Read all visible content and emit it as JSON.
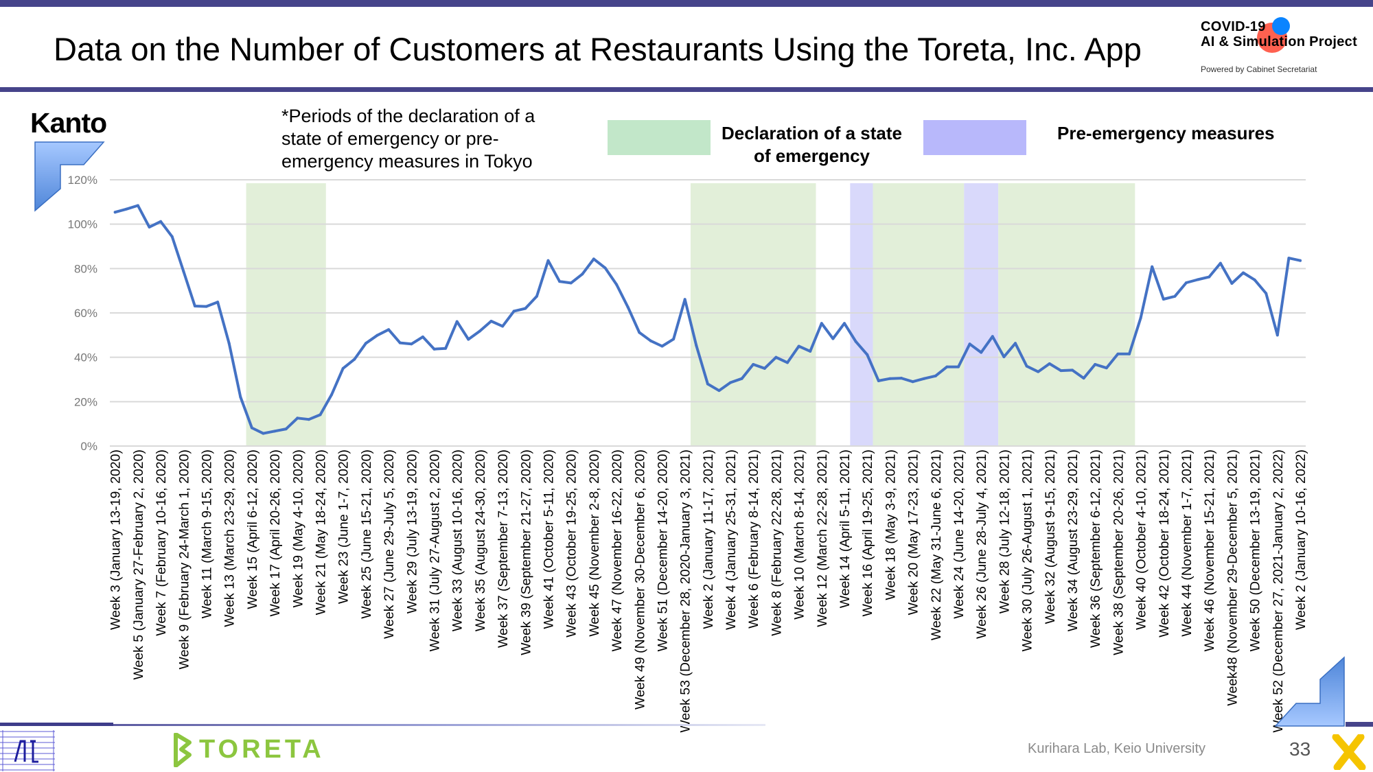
{
  "header": {
    "title": "Data on the Number of Customers at Restaurants Using the Toreta, Inc. App",
    "logo": {
      "line1": "COVID-19",
      "line2": "AI & Simulation Project",
      "line3": "Powered by Cabinet Secretariat"
    }
  },
  "region": "Kanto",
  "note": "*Periods of the declaration of a state of emergency or pre-emergency measures in Tokyo",
  "legend": {
    "emergency_label": "Declaration of a state of emergency",
    "pre_emergency_label": "Pre-emergency measures"
  },
  "colors": {
    "brand_bar": "#46448a",
    "line": "#4472c4",
    "emergency_legend": "#c2e7c9",
    "pre_emergency_legend": "#b8b8fb",
    "emergency_band": "#e2efd9",
    "pre_emergency_band": "#d9d9fb",
    "toreta_green": "#8cc63f"
  },
  "chart_data": {
    "type": "line",
    "title": "",
    "xlabel": "",
    "ylabel": "",
    "ylim": [
      0,
      120
    ],
    "y_ticks": [
      "0%",
      "20%",
      "40%",
      "60%",
      "80%",
      "100%",
      "120%"
    ],
    "grid": "horizontal",
    "x_label_every": 2,
    "x_labels": [
      "Week 3 (January 13-19, 2020)",
      "Week 5 (January 27-February 2, 2020)",
      "Week 7 (February 10-16, 2020)",
      "Week 9 (February 24-March 1, 2020)",
      "Week 11 (March 9-15, 2020)",
      "Week 13 (March 23-29, 2020)",
      "Week 15 (April 6-12, 2020)",
      "Week 17 (April 20-26, 2020)",
      "Week 19 (May 4-10, 2020)",
      "Week 21 (May 18-24, 2020)",
      "Week 23 (June 1-7, 2020)",
      "Week 25 (June 15-21, 2020)",
      "Week 27 (June 29-July 5, 2020)",
      "Week 29 (July 13-19, 2020)",
      "Week 31 (July 27-August 2, 2020)",
      "Week 33 (August 10-16, 2020)",
      "Week 35 (August 24-30, 2020)",
      "Week 37 (September 7-13, 2020)",
      "Week 39 (September 21-27, 2020)",
      "Week 41 (October 5-11, 2020)",
      "Week 43 (October 19-25, 2020)",
      "Week 45 (November 2-8, 2020)",
      "Week 47 (November 16-22, 2020)",
      "Week 49 (November 30-December 6, 2020)",
      "Week 51 (December 14-20, 2020)",
      "Week 53 (December 28, 2020-January 3, 2021)",
      "Week 2 (January 11-17, 2021)",
      "Week 4 (January 25-31, 2021)",
      "Week 6 (February 8-14, 2021)",
      "Week 8 (February 22-28, 2021)",
      "Week 10 (March 8-14, 2021)",
      "Week 12 (March 22-28, 2021)",
      "Week 14 (April 5-11, 2021)",
      "Week 16 (April 19-25, 2021)",
      "Week 18 (May 3-9, 2021)",
      "Week 20 (May 17-23, 2021)",
      "Week 22 (May 31-June 6, 2021)",
      "Week 24 (June 14-20, 2021)",
      "Week 26 (June 28-July 4, 2021)",
      "Week 28 (July 12-18, 2021)",
      "Week 30 (July 26-August 1, 2021)",
      "Week 32 (August 9-15, 2021)",
      "Week 34 (August 23-29, 2021)",
      "Week 36 (September 6-12, 2021)",
      "Week 38 (September 20-26, 2021)",
      "Week 40 (October 4-10, 2021)",
      "Week 42 (October 18-24, 2021)",
      "Week 44 (November 1-7, 2021)",
      "Week 46 (November 15-21, 2021)",
      "Week48 (November 29-December 5, 2021)",
      "Week 50 (December 13-19, 2021)",
      "Week 52 (December 27, 2021-January 2, 2022)",
      "Week 2 (January 10-16, 2022)"
    ],
    "series": [
      {
        "values": [
          105.4,
          106.8,
          108.4,
          98.7,
          101.2,
          94.4,
          78.8,
          63.1,
          62.9,
          64.9,
          46.3,
          22.1,
          8.2,
          5.7,
          6.7,
          7.7,
          12.6,
          12.0,
          14.1,
          23.2,
          35.0,
          39.1,
          46.3,
          49.9,
          52.5,
          46.5,
          46.0,
          49.2,
          43.7,
          44.0,
          56.1,
          48.1,
          51.8,
          56.3,
          54.0,
          60.8,
          62.0,
          67.5,
          83.6,
          74.2,
          73.5,
          77.5,
          84.3,
          80.3,
          72.8,
          62.6,
          51.2,
          47.4,
          45.0,
          48.2,
          66.1,
          45.3,
          28.0,
          25.0,
          28.6,
          30.4,
          36.8,
          35.0,
          40.0,
          37.6,
          45.0,
          42.7,
          55.3,
          48.4,
          55.3,
          47.1,
          41.2,
          29.4,
          30.4,
          30.6,
          29.0,
          30.4,
          31.6,
          35.7,
          35.7,
          46.0,
          42.2,
          49.4,
          40.2,
          46.3,
          36.0,
          33.5,
          37.1,
          34.0,
          34.2,
          30.6,
          36.8,
          35.2,
          41.5,
          41.5,
          57.7,
          80.8,
          66.2,
          67.5,
          73.6,
          75.0,
          76.2,
          82.4,
          73.3,
          78.1,
          74.9,
          68.8,
          50.0,
          84.7,
          83.6
        ]
      }
    ],
    "shaded_periods": [
      {
        "type": "emergency",
        "start_point": 12,
        "end_point": 18
      },
      {
        "type": "emergency",
        "start_point": 51,
        "end_point": 61
      },
      {
        "type": "pre_emergency",
        "start_point": 65,
        "end_point": 66
      },
      {
        "type": "emergency",
        "start_point": 67,
        "end_point": 74
      },
      {
        "type": "pre_emergency",
        "start_point": 75,
        "end_point": 77
      },
      {
        "type": "emergency",
        "start_point": 78,
        "end_point": 89
      }
    ]
  },
  "footer": {
    "toreta_logo": "TORETA",
    "credit": "Kurihara Lab, Keio University",
    "page_number": "33"
  }
}
